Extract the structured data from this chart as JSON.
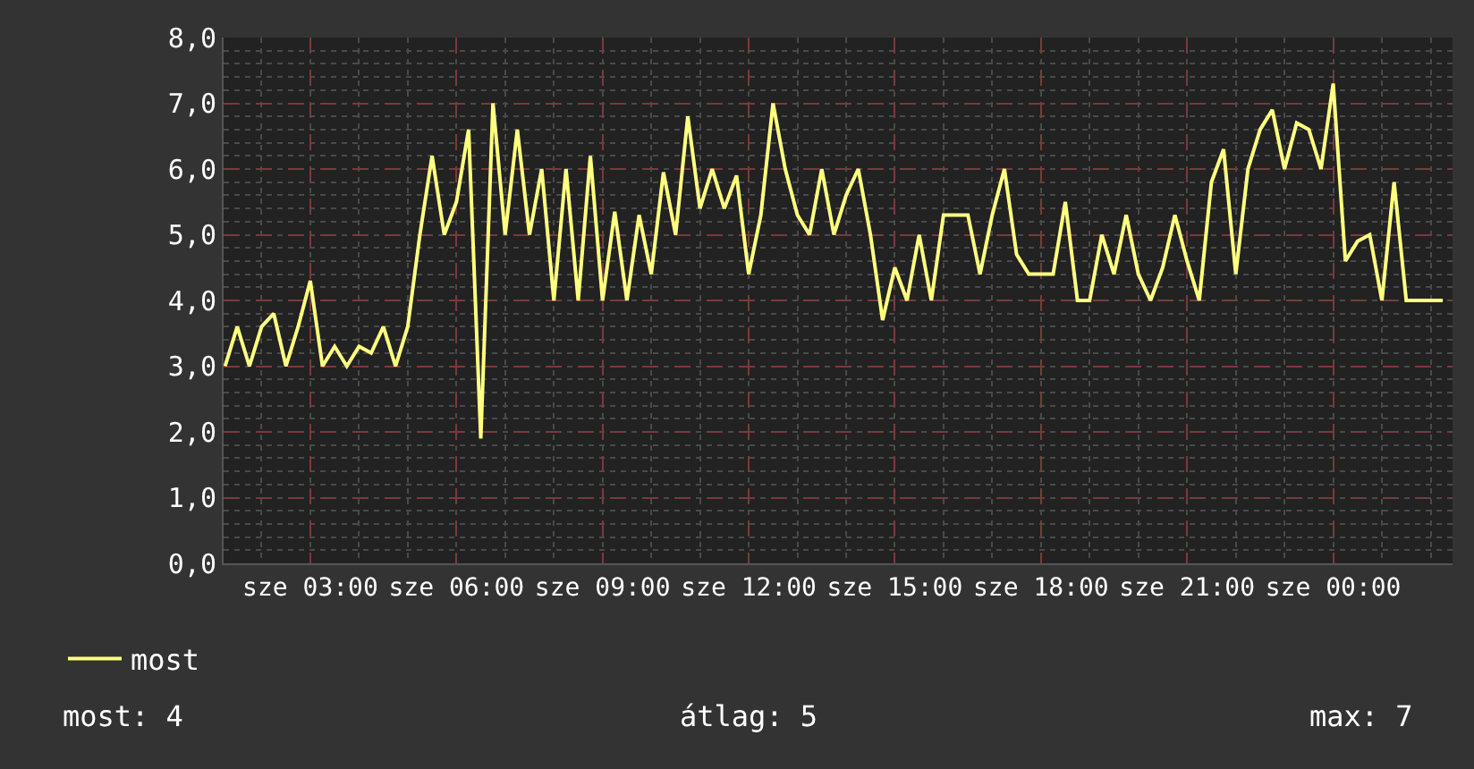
{
  "chart_data": {
    "type": "line",
    "categories": [
      null,
      null,
      null,
      null,
      null,
      null,
      null,
      "sze 03:00",
      null,
      null,
      null,
      null,
      null,
      null,
      null,
      null,
      null,
      null,
      null,
      "sze 06:00",
      null,
      null,
      null,
      null,
      null,
      null,
      null,
      null,
      null,
      null,
      null,
      "sze 09:00",
      null,
      null,
      null,
      null,
      null,
      null,
      null,
      null,
      null,
      null,
      null,
      "sze 12:00",
      null,
      null,
      null,
      null,
      null,
      null,
      null,
      null,
      null,
      null,
      null,
      "sze 15:00",
      null,
      null,
      null,
      null,
      null,
      null,
      null,
      null,
      null,
      null,
      null,
      "sze 18:00",
      null,
      null,
      null,
      null,
      null,
      null,
      null,
      null,
      null,
      null,
      null,
      "sze 21:00",
      null,
      null,
      null,
      null,
      null,
      null,
      null,
      null,
      null,
      null,
      null,
      "sze 00:00",
      null,
      null,
      null,
      null,
      null,
      null,
      null,
      null,
      null
    ],
    "series": [
      {
        "name": "most",
        "color": "#ffff80",
        "values": [
          3.0,
          3.6,
          3.0,
          3.6,
          3.8,
          3.0,
          3.6,
          4.3,
          3.0,
          3.3,
          3.0,
          3.3,
          3.2,
          3.6,
          3.0,
          3.6,
          5.0,
          6.2,
          5.0,
          5.5,
          6.6,
          1.9,
          7.0,
          5.0,
          6.6,
          5.0,
          6.0,
          4.0,
          6.0,
          4.0,
          6.2,
          4.0,
          5.35,
          4.0,
          5.3,
          4.4,
          5.95,
          5.0,
          6.8,
          5.4,
          6.0,
          5.4,
          5.9,
          4.4,
          5.3,
          7.0,
          6.0,
          5.3,
          5.0,
          6.0,
          5.0,
          5.6,
          6.0,
          5.0,
          3.7,
          4.5,
          4.0,
          5.0,
          4.0,
          5.3,
          5.3,
          5.3,
          4.4,
          5.3,
          6.0,
          4.7,
          4.4,
          4.4,
          4.4,
          5.5,
          4.0,
          4.0,
          5.0,
          4.4,
          5.3,
          4.4,
          4.0,
          4.5,
          5.3,
          4.6,
          4.0,
          5.8,
          6.3,
          4.4,
          6.0,
          6.6,
          6.9,
          6.0,
          6.7,
          6.6,
          6.0,
          7.3,
          4.6,
          4.9,
          5.0,
          4.0,
          5.8,
          4.0,
          4.0,
          4.0,
          4.0
        ]
      }
    ],
    "ylim": [
      0,
      8
    ],
    "yticks": [
      {
        "value": 0,
        "label": "0,0"
      },
      {
        "value": 1,
        "label": "1,0"
      },
      {
        "value": 2,
        "label": "2,0"
      },
      {
        "value": 3,
        "label": "3,0"
      },
      {
        "value": 4,
        "label": "4,0"
      },
      {
        "value": 5,
        "label": "5,0"
      },
      {
        "value": 6,
        "label": "6,0"
      },
      {
        "value": 7,
        "label": "7,0"
      },
      {
        "value": 8,
        "label": "8,0"
      }
    ],
    "grid": true,
    "legend": "bottom",
    "marker": "none",
    "line_style": "solid",
    "annotations": [
      "most: 4",
      "átlag: 5",
      "max: 7"
    ]
  }
}
